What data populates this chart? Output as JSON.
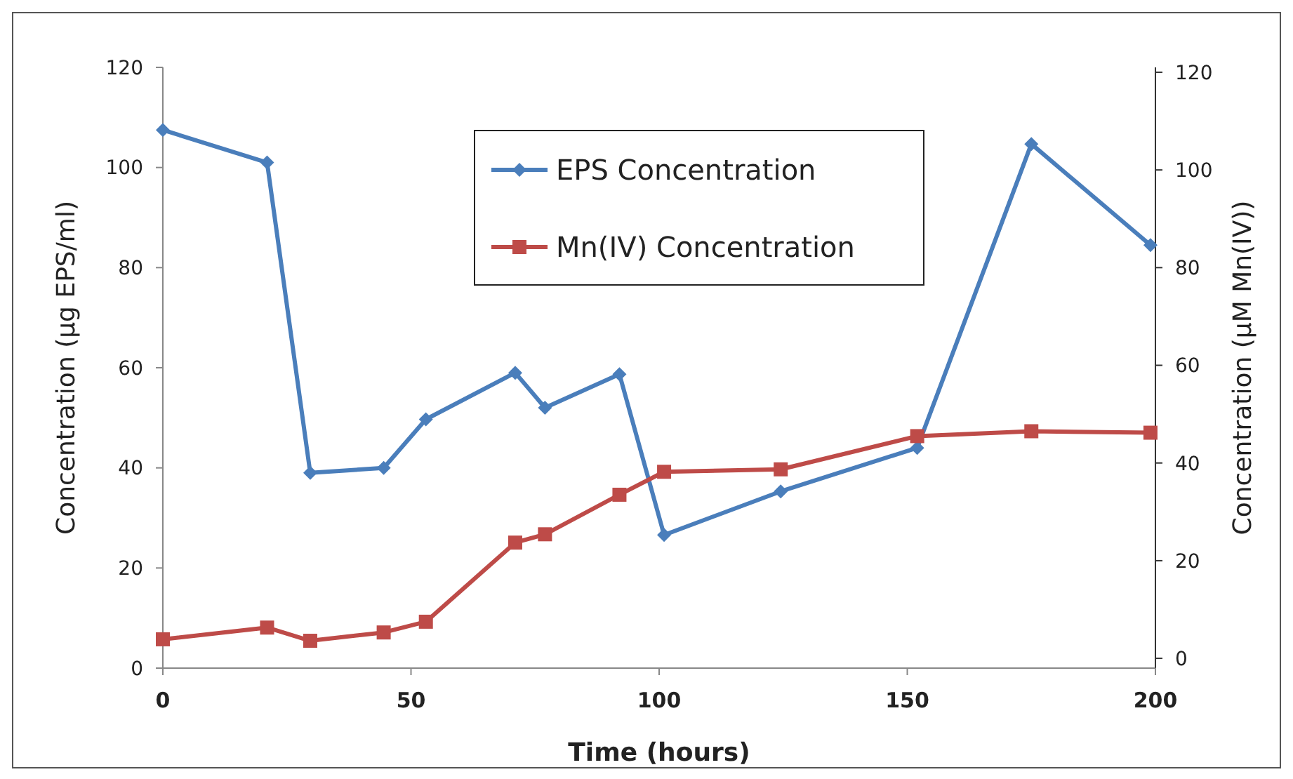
{
  "chart_data": {
    "type": "line",
    "xlabel": "Time (hours)",
    "ylabel": "Concentration (µg EPS/ml)",
    "y2label": "Concentration (µM Mn(IV))",
    "xlim": [
      0,
      200
    ],
    "xticks": [
      0,
      50,
      100,
      150,
      200
    ],
    "ylim": [
      0,
      120
    ],
    "yticks": [
      0,
      20,
      40,
      60,
      80,
      100,
      120
    ],
    "y2lim": [
      -2,
      121
    ],
    "y2ticks": [
      0,
      20,
      40,
      60,
      80,
      100,
      120
    ],
    "grid": false,
    "legend": "top",
    "line_style": "solid",
    "series": [
      {
        "name": "EPS Concentration",
        "color": "#4a7ebb",
        "marker": "diamond",
        "x": [
          0,
          21,
          29.7,
          44.5,
          53,
          71,
          77,
          92,
          101,
          124.5,
          152,
          175,
          199
        ],
        "values": [
          107.5,
          101,
          39,
          40,
          49.7,
          59,
          52,
          58.7,
          26.6,
          35.3,
          44,
          104.7,
          84.5
        ]
      },
      {
        "name": "Mn(IV) Concentration",
        "color": "#be4b48",
        "marker": "square",
        "axis": "y2",
        "x": [
          0,
          21,
          29.7,
          44.5,
          53,
          71,
          77,
          92,
          101,
          124.5,
          152,
          175,
          199
        ],
        "values": [
          3.9,
          6.3,
          3.6,
          5.3,
          7.5,
          23.7,
          25.4,
          33.5,
          38.2,
          38.7,
          45.5,
          46.5,
          46.2
        ]
      }
    ]
  }
}
